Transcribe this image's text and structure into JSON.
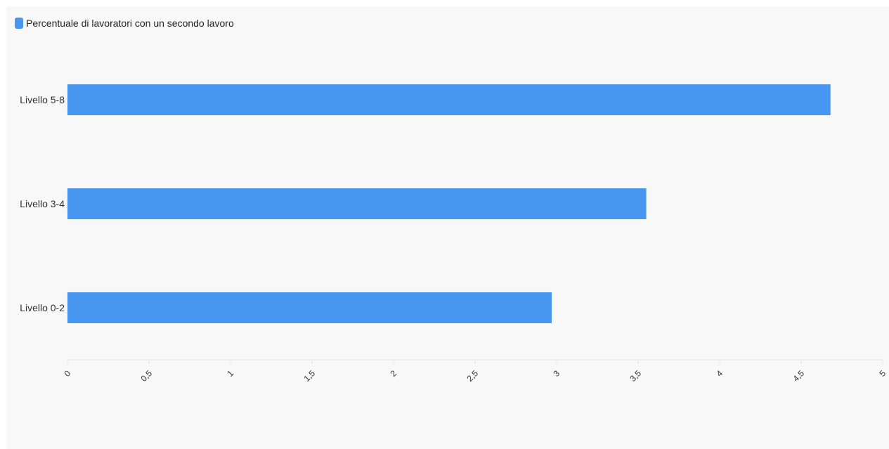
{
  "chart_data": {
    "type": "bar",
    "orientation": "horizontal",
    "categories": [
      "Livello 5-8",
      "Livello 3-4",
      "Livello 0-2"
    ],
    "series": [
      {
        "name": "Percentuale di lavoratori con un secondo lavoro",
        "values": [
          4.68,
          3.55,
          2.97
        ]
      }
    ],
    "xlim": [
      0,
      5
    ],
    "x_ticks": [
      0,
      0.5,
      1,
      1.5,
      2,
      2.5,
      3,
      3.5,
      4,
      4.5,
      5
    ],
    "x_tick_labels": [
      "0",
      "0,5",
      "1",
      "1,5",
      "2",
      "2,5",
      "3",
      "3,5",
      "4",
      "4,5",
      "5"
    ],
    "title": "",
    "xlabel": "",
    "ylabel": "",
    "grid": false,
    "legend_position": "top-left",
    "colors": {
      "bar": "#4796f0",
      "background": "#f8f8f8",
      "axis": "#e2e2e2"
    }
  }
}
